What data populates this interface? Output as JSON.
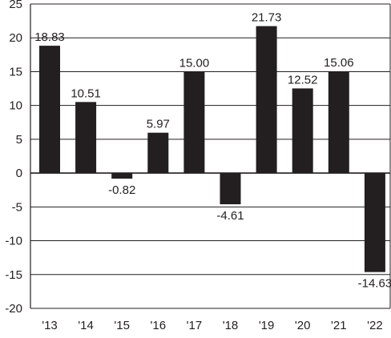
{
  "chart_data": {
    "type": "bar",
    "title": "",
    "xlabel": "",
    "ylabel": "",
    "categories": [
      "'13",
      "'14",
      "'15",
      "'16",
      "'17",
      "'18",
      "'19",
      "'20",
      "'21",
      "'22"
    ],
    "values": [
      18.83,
      10.51,
      -0.82,
      5.97,
      15.0,
      -4.61,
      21.73,
      12.52,
      15.06,
      -14.63
    ],
    "value_labels": [
      "18.83",
      "10.51",
      "-0.82",
      "5.97",
      "15.00",
      "-4.61",
      "21.73",
      "12.52",
      "15.06",
      "-14.63"
    ],
    "ylim": [
      -20,
      25
    ],
    "yticks": [
      25,
      20,
      15,
      10,
      5,
      0,
      -5,
      -10,
      -15,
      -20
    ],
    "ytick_labels": [
      "25",
      "20",
      "15",
      "10",
      "5",
      "0",
      "-5",
      "-10",
      "-15",
      "-20"
    ],
    "grid": true,
    "legend": "none",
    "colors": {
      "bar": "#231f20",
      "grid": "#231f20",
      "text": "#231f20"
    }
  }
}
